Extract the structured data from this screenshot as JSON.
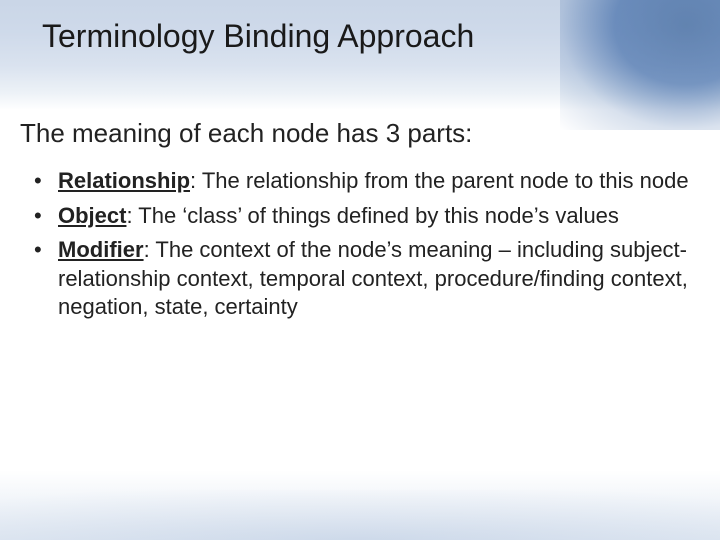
{
  "slide": {
    "title": "Terminology Binding Approach",
    "subtitle": "The meaning of each node has 3 parts:",
    "bullets": [
      {
        "term": "Relationship",
        "desc": ": The relationship from the parent node to this node"
      },
      {
        "term": "Object",
        "desc": ": The ‘class’ of things defined by this node’s values"
      },
      {
        "term": "Modifier",
        "desc": ": The context of the node’s meaning – including subject-relationship context, temporal context, procedure/finding context, negation, state, certainty"
      }
    ]
  },
  "style": {
    "title_color": "#1a1a1a",
    "title_fontsize": 32,
    "subtitle_fontsize": 26,
    "bullet_fontsize": 22,
    "background_color": "#ffffff",
    "accent_blue": "#2a5a9e",
    "header_gradient_top": "#2a5a9e",
    "header_gradient_bottom": "#ffffff"
  }
}
